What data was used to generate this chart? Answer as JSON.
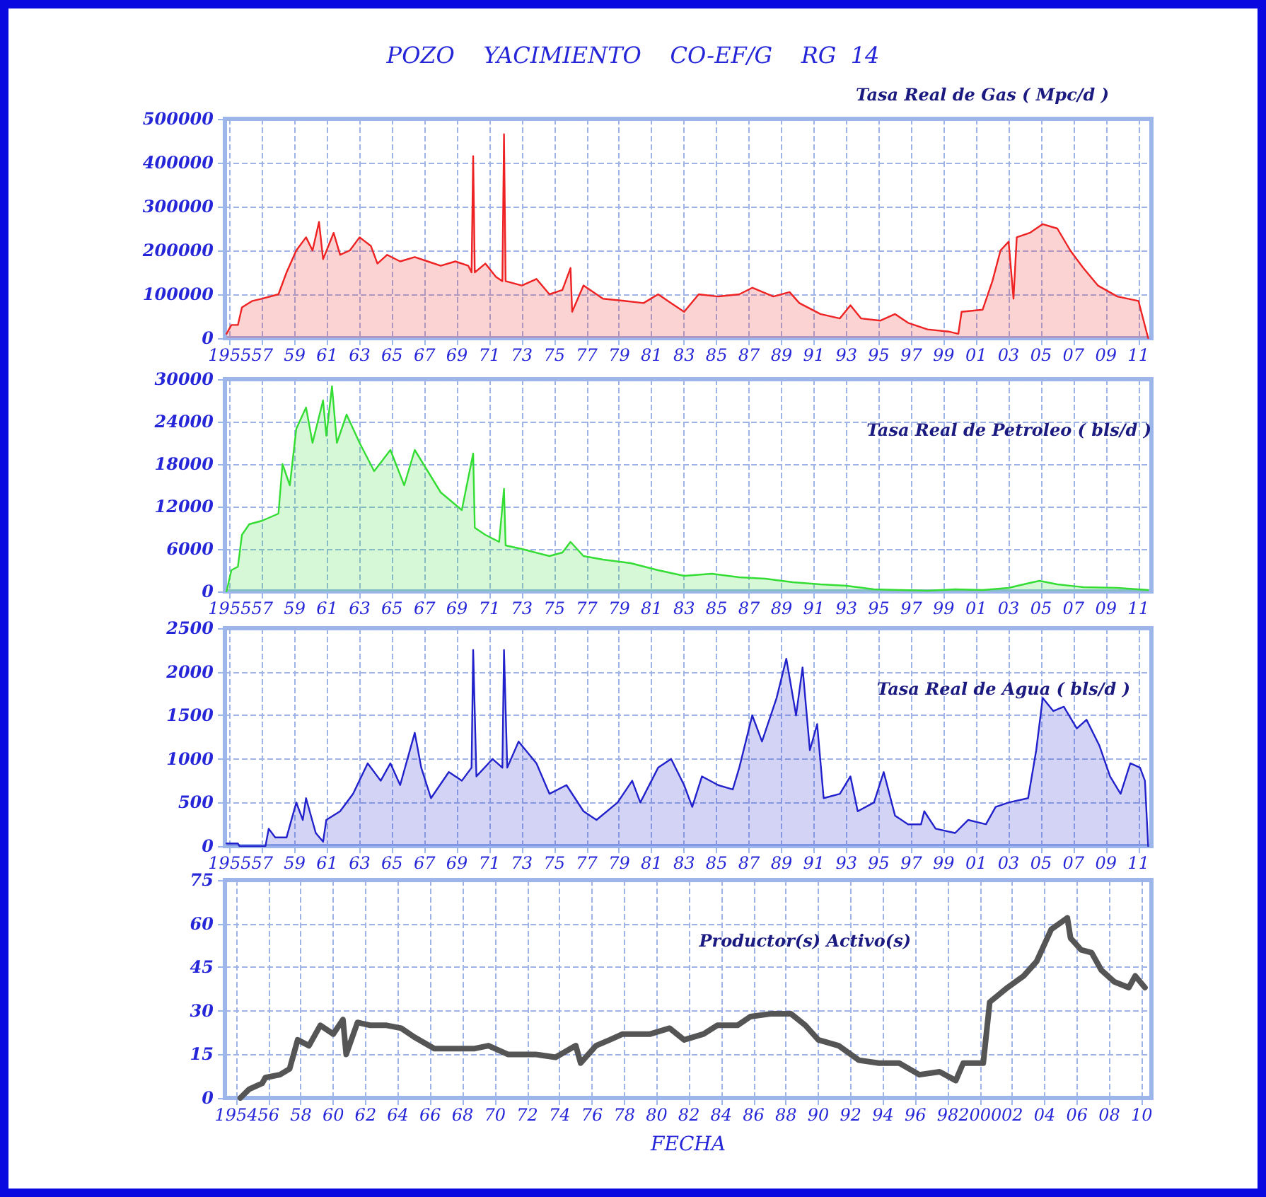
{
  "chart_data": [
    {
      "type": "area",
      "title": "POZO    YACIMIENTO    CO-EF/G    RG  14",
      "subtitle": "Tasa Real de Gas ( Mpc/d )",
      "color": "#ee2222",
      "grid": true,
      "marker": "none",
      "line_style": "solid",
      "xlim": [
        1954.7,
        2011.8
      ],
      "ylim": [
        0,
        500000
      ],
      "yticks": [
        0,
        100000,
        200000,
        300000,
        400000,
        500000
      ],
      "xticks": [
        {
          "value": 1955,
          "label": "1955"
        },
        {
          "value": 1957,
          "label": "57"
        },
        {
          "value": 1959,
          "label": "59"
        },
        {
          "value": 1961,
          "label": "61"
        },
        {
          "value": 1963,
          "label": "63"
        },
        {
          "value": 1965,
          "label": "65"
        },
        {
          "value": 1967,
          "label": "67"
        },
        {
          "value": 1969,
          "label": "69"
        },
        {
          "value": 1971,
          "label": "71"
        },
        {
          "value": 1973,
          "label": "73"
        },
        {
          "value": 1975,
          "label": "75"
        },
        {
          "value": 1977,
          "label": "77"
        },
        {
          "value": 1979,
          "label": "79"
        },
        {
          "value": 1981,
          "label": "81"
        },
        {
          "value": 1983,
          "label": "83"
        },
        {
          "value": 1985,
          "label": "85"
        },
        {
          "value": 1987,
          "label": "87"
        },
        {
          "value": 1989,
          "label": "89"
        },
        {
          "value": 1991,
          "label": "91"
        },
        {
          "value": 1993,
          "label": "93"
        },
        {
          "value": 1995,
          "label": "95"
        },
        {
          "value": 1997,
          "label": "97"
        },
        {
          "value": 1999,
          "label": "99"
        },
        {
          "value": 2001,
          "label": "01"
        },
        {
          "value": 2003,
          "label": "03"
        },
        {
          "value": 2005,
          "label": "05"
        },
        {
          "value": 2007,
          "label": "07"
        },
        {
          "value": 2009,
          "label": "09"
        },
        {
          "value": 2011,
          "label": "11"
        }
      ],
      "x": [
        1954.8,
        1955.1,
        1955.5,
        1955.75,
        1956.4,
        1957.0,
        1958.0,
        1958.5,
        1959.1,
        1959.7,
        1960.1,
        1960.5,
        1960.75,
        1961.4,
        1961.8,
        1962.4,
        1963.0,
        1963.7,
        1964.1,
        1964.7,
        1965.5,
        1966.4,
        1967.2,
        1968.0,
        1968.9,
        1969.7,
        1969.9,
        1970.0,
        1970.1,
        1970.75,
        1971.4,
        1971.8,
        1971.9,
        1972.0,
        1973.0,
        1973.9,
        1974.7,
        1975.5,
        1976.0,
        1976.1,
        1976.8,
        1978.0,
        1979.3,
        1980.5,
        1981.4,
        1982.2,
        1983.0,
        1983.9,
        1985.1,
        1986.4,
        1987.2,
        1988.5,
        1989.5,
        1990.1,
        1991.4,
        1992.6,
        1993.25,
        1993.9,
        1995.1,
        1996.0,
        1996.8,
        1998.0,
        1999.3,
        1999.9,
        2000.1,
        2001.4,
        2002.0,
        2002.5,
        2003.0,
        2003.3,
        2003.5,
        2004.3,
        2005.1,
        2006.0,
        2006.8,
        2007.6,
        2008.5,
        2009.7,
        2011.0,
        2011.6
      ],
      "values": [
        10000,
        30000,
        30000,
        70000,
        85000,
        90000,
        100000,
        150000,
        200000,
        230000,
        200000,
        265000,
        180000,
        240000,
        190000,
        200000,
        230000,
        210000,
        170000,
        190000,
        175000,
        185000,
        175000,
        165000,
        175000,
        165000,
        150000,
        415000,
        150000,
        170000,
        140000,
        130000,
        465000,
        130000,
        120000,
        135000,
        100000,
        110000,
        160000,
        60000,
        120000,
        90000,
        85000,
        80000,
        100000,
        80000,
        60000,
        100000,
        95000,
        100000,
        115000,
        95000,
        105000,
        80000,
        55000,
        45000,
        75000,
        45000,
        40000,
        55000,
        35000,
        20000,
        15000,
        10000,
        60000,
        65000,
        130000,
        200000,
        220000,
        90000,
        230000,
        240000,
        260000,
        250000,
        200000,
        160000,
        120000,
        95000,
        85000,
        0
      ]
    },
    {
      "type": "area",
      "title": "Tasa Real de Petroleo ( bls/d )",
      "color": "#33dd33",
      "grid": true,
      "marker": "none",
      "line_style": "solid",
      "xlim": [
        1954.7,
        2011.8
      ],
      "ylim": [
        0,
        30000
      ],
      "yticks": [
        0,
        6000,
        12000,
        18000,
        24000,
        30000
      ],
      "xticks": [
        {
          "value": 1955,
          "label": "1955"
        },
        {
          "value": 1957,
          "label": "57"
        },
        {
          "value": 1959,
          "label": "59"
        },
        {
          "value": 1961,
          "label": "61"
        },
        {
          "value": 1963,
          "label": "63"
        },
        {
          "value": 1965,
          "label": "65"
        },
        {
          "value": 1967,
          "label": "67"
        },
        {
          "value": 1969,
          "label": "69"
        },
        {
          "value": 1971,
          "label": "71"
        },
        {
          "value": 1973,
          "label": "73"
        },
        {
          "value": 1975,
          "label": "75"
        },
        {
          "value": 1977,
          "label": "77"
        },
        {
          "value": 1979,
          "label": "79"
        },
        {
          "value": 1981,
          "label": "81"
        },
        {
          "value": 1983,
          "label": "83"
        },
        {
          "value": 1985,
          "label": "85"
        },
        {
          "value": 1987,
          "label": "87"
        },
        {
          "value": 1989,
          "label": "89"
        },
        {
          "value": 1991,
          "label": "91"
        },
        {
          "value": 1993,
          "label": "93"
        },
        {
          "value": 1995,
          "label": "95"
        },
        {
          "value": 1997,
          "label": "97"
        },
        {
          "value": 1999,
          "label": "99"
        },
        {
          "value": 2001,
          "label": "01"
        },
        {
          "value": 2003,
          "label": "03"
        },
        {
          "value": 2005,
          "label": "05"
        },
        {
          "value": 2007,
          "label": "07"
        },
        {
          "value": 2009,
          "label": "09"
        },
        {
          "value": 2011,
          "label": "11"
        }
      ],
      "x": [
        1954.8,
        1955.1,
        1955.5,
        1955.75,
        1956.2,
        1957.0,
        1958.0,
        1958.25,
        1958.7,
        1959.1,
        1959.7,
        1960.1,
        1960.75,
        1960.95,
        1961.3,
        1961.6,
        1962.2,
        1963.0,
        1963.9,
        1964.9,
        1965.75,
        1966.4,
        1967.2,
        1968.0,
        1969.3,
        1970.0,
        1970.1,
        1970.75,
        1971.6,
        1971.9,
        1972.0,
        1973.0,
        1974.7,
        1975.5,
        1976.0,
        1976.8,
        1978.0,
        1979.7,
        1981.4,
        1983.0,
        1984.7,
        1986.4,
        1988.0,
        1989.7,
        1991.4,
        1993.0,
        1994.7,
        1996.4,
        1998.0,
        1999.7,
        2001.4,
        2003.0,
        2004.3,
        2004.9,
        2006.0,
        2007.6,
        2009.7,
        2011.6
      ],
      "values": [
        0,
        3000,
        3500,
        8000,
        9500,
        10000,
        11000,
        18000,
        15000,
        23000,
        26000,
        21000,
        27000,
        22000,
        29000,
        21000,
        25000,
        21000,
        17000,
        20000,
        15000,
        20000,
        17000,
        14000,
        11500,
        19500,
        9000,
        8000,
        7000,
        14500,
        6500,
        6000,
        5000,
        5500,
        7000,
        5000,
        4500,
        4000,
        3000,
        2200,
        2500,
        2000,
        1800,
        1300,
        1000,
        800,
        300,
        200,
        100,
        300,
        200,
        500,
        1200,
        1500,
        1000,
        600,
        500,
        200
      ]
    },
    {
      "type": "area",
      "title": "Tasa Real de Agua ( bls/d )",
      "color": "#2222cc",
      "grid": true,
      "marker": "none",
      "line_style": "solid",
      "xlim": [
        1954.7,
        2011.8
      ],
      "ylim": [
        0,
        2500
      ],
      "yticks": [
        0,
        500,
        1000,
        1500,
        2000,
        2500
      ],
      "xticks": [
        {
          "value": 1955,
          "label": "1955"
        },
        {
          "value": 1957,
          "label": "57"
        },
        {
          "value": 1959,
          "label": "59"
        },
        {
          "value": 1961,
          "label": "61"
        },
        {
          "value": 1963,
          "label": "63"
        },
        {
          "value": 1965,
          "label": "65"
        },
        {
          "value": 1967,
          "label": "67"
        },
        {
          "value": 1969,
          "label": "69"
        },
        {
          "value": 1971,
          "label": "71"
        },
        {
          "value": 1973,
          "label": "73"
        },
        {
          "value": 1975,
          "label": "75"
        },
        {
          "value": 1977,
          "label": "77"
        },
        {
          "value": 1979,
          "label": "79"
        },
        {
          "value": 1981,
          "label": "81"
        },
        {
          "value": 1983,
          "label": "83"
        },
        {
          "value": 1985,
          "label": "85"
        },
        {
          "value": 1987,
          "label": "87"
        },
        {
          "value": 1989,
          "label": "89"
        },
        {
          "value": 1991,
          "label": "91"
        },
        {
          "value": 1993,
          "label": "93"
        },
        {
          "value": 1995,
          "label": "95"
        },
        {
          "value": 1997,
          "label": "97"
        },
        {
          "value": 1999,
          "label": "99"
        },
        {
          "value": 2001,
          "label": "01"
        },
        {
          "value": 2003,
          "label": "03"
        },
        {
          "value": 2005,
          "label": "05"
        },
        {
          "value": 2007,
          "label": "07"
        },
        {
          "value": 2009,
          "label": "09"
        },
        {
          "value": 2011,
          "label": "11"
        }
      ],
      "x": [
        1954.8,
        1955.5,
        1955.6,
        1957.2,
        1957.4,
        1957.8,
        1958.5,
        1959.1,
        1959.5,
        1959.7,
        1960.3,
        1960.75,
        1960.95,
        1961.8,
        1962.6,
        1963.5,
        1964.3,
        1964.9,
        1965.5,
        1966.4,
        1966.8,
        1967.4,
        1968.5,
        1969.3,
        1969.9,
        1970.0,
        1970.2,
        1971.2,
        1971.8,
        1971.9,
        1972.1,
        1972.8,
        1973.9,
        1974.7,
        1975.75,
        1976.8,
        1977.6,
        1978.9,
        1979.8,
        1980.3,
        1981.4,
        1982.2,
        1983.0,
        1983.5,
        1984.1,
        1985.1,
        1986.0,
        1986.4,
        1987.2,
        1987.8,
        1988.7,
        1989.3,
        1989.9,
        1990.3,
        1990.75,
        1991.2,
        1991.6,
        1992.6,
        1993.25,
        1993.7,
        1994.7,
        1995.3,
        1996.0,
        1996.8,
        1997.6,
        1997.8,
        1998.5,
        1999.7,
        2000.5,
        2001.6,
        2002.2,
        2003.0,
        2004.2,
        2004.7,
        2005.1,
        2005.75,
        2006.4,
        2007.2,
        2007.8,
        2008.6,
        2009.25,
        2009.9,
        2010.5,
        2011.1,
        2011.4,
        2011.6
      ],
      "values": [
        30,
        30,
        0,
        0,
        200,
        100,
        100,
        500,
        300,
        550,
        150,
        50,
        300,
        400,
        600,
        950,
        750,
        950,
        700,
        1300,
        900,
        550,
        850,
        750,
        900,
        2250,
        800,
        1000,
        900,
        2250,
        900,
        1200,
        950,
        600,
        700,
        400,
        300,
        500,
        750,
        500,
        900,
        1000,
        700,
        450,
        800,
        700,
        650,
        900,
        1500,
        1200,
        1700,
        2150,
        1500,
        2050,
        1100,
        1400,
        550,
        600,
        800,
        400,
        500,
        850,
        350,
        250,
        250,
        400,
        200,
        150,
        300,
        250,
        450,
        500,
        550,
        1100,
        1700,
        1550,
        1600,
        1350,
        1450,
        1150,
        800,
        600,
        950,
        900,
        750,
        0
      ]
    },
    {
      "type": "line",
      "title": "Productor(s) Activo(s)",
      "xlabel": "FECHA",
      "color": "#555555",
      "grid": true,
      "marker": "none",
      "line_style": "solid",
      "xlim": [
        1953.3,
        2010.6
      ],
      "ylim": [
        0,
        75
      ],
      "yticks": [
        0,
        15,
        30,
        45,
        60,
        75
      ],
      "xticks": [
        {
          "value": 1954,
          "label": "1954"
        },
        {
          "value": 1956,
          "label": "56"
        },
        {
          "value": 1958,
          "label": "58"
        },
        {
          "value": 1960,
          "label": "60"
        },
        {
          "value": 1962,
          "label": "62"
        },
        {
          "value": 1964,
          "label": "64"
        },
        {
          "value": 1966,
          "label": "66"
        },
        {
          "value": 1968,
          "label": "68"
        },
        {
          "value": 1970,
          "label": "70"
        },
        {
          "value": 1972,
          "label": "72"
        },
        {
          "value": 1974,
          "label": "74"
        },
        {
          "value": 1976,
          "label": "76"
        },
        {
          "value": 1978,
          "label": "78"
        },
        {
          "value": 1980,
          "label": "80"
        },
        {
          "value": 1982,
          "label": "82"
        },
        {
          "value": 1984,
          "label": "84"
        },
        {
          "value": 1986,
          "label": "86"
        },
        {
          "value": 1988,
          "label": "88"
        },
        {
          "value": 1990,
          "label": "90"
        },
        {
          "value": 1992,
          "label": "92"
        },
        {
          "value": 1994,
          "label": "94"
        },
        {
          "value": 1996,
          "label": "96"
        },
        {
          "value": 1998,
          "label": "98"
        },
        {
          "value": 2000,
          "label": "2000"
        },
        {
          "value": 2002,
          "label": "02"
        },
        {
          "value": 2004,
          "label": "04"
        },
        {
          "value": 2006,
          "label": "06"
        },
        {
          "value": 2008,
          "label": "08"
        },
        {
          "value": 2010,
          "label": "10"
        }
      ],
      "x": [
        1954.25,
        1954.8,
        1955.6,
        1955.8,
        1956.7,
        1957.3,
        1957.8,
        1958.5,
        1959.2,
        1960.0,
        1960.6,
        1960.8,
        1961.5,
        1962.3,
        1963.3,
        1964.2,
        1965.0,
        1966.25,
        1967.5,
        1968.75,
        1969.6,
        1970.8,
        1972.5,
        1973.75,
        1975.0,
        1975.3,
        1976.25,
        1977.1,
        1977.9,
        1979.6,
        1980.8,
        1981.7,
        1982.9,
        1983.75,
        1985.0,
        1985.8,
        1987.1,
        1988.3,
        1989.2,
        1990.0,
        1991.25,
        1992.5,
        1993.75,
        1995.0,
        1996.25,
        1997.5,
        1998.5,
        1998.96,
        2000.2,
        2000.6,
        2001.7,
        2002.7,
        2003.5,
        2004.4,
        2005.4,
        2005.6,
        2006.25,
        2006.9,
        2007.5,
        2008.3,
        2009.2,
        2009.6,
        2010.2
      ],
      "values": [
        0,
        3,
        5,
        7,
        8,
        10,
        20,
        18,
        25,
        22,
        27,
        15,
        26,
        25,
        25,
        24,
        21,
        17,
        17,
        17,
        18,
        15,
        15,
        14,
        18,
        12,
        18,
        20,
        22,
        22,
        24,
        20,
        22,
        25,
        25,
        28,
        29,
        29,
        25,
        20,
        18,
        13,
        12,
        12,
        8,
        9,
        6,
        12,
        12,
        33,
        38,
        42,
        47,
        58,
        62,
        55,
        51,
        50,
        44,
        40,
        38,
        42,
        38
      ]
    }
  ]
}
